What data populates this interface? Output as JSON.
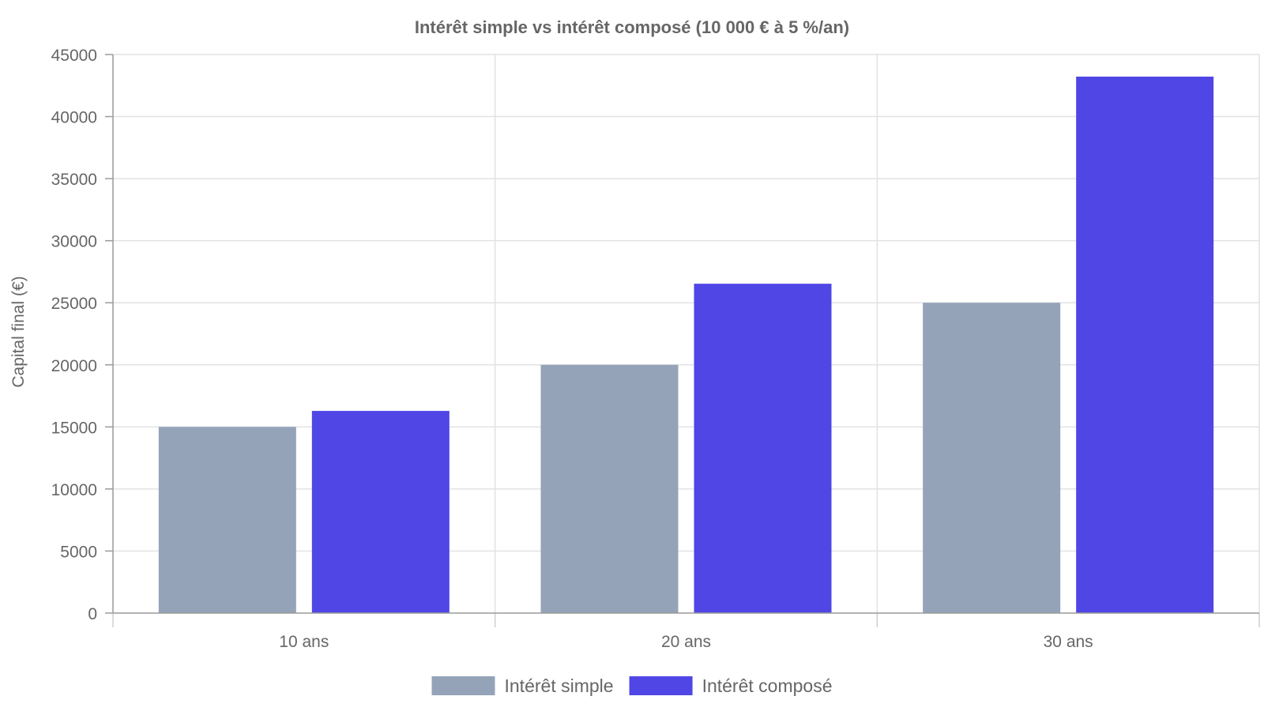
{
  "chart_data": {
    "type": "bar",
    "title": "Intérêt simple vs intérêt composé (10 000 € à 5 %/an)",
    "xlabel": "",
    "ylabel": "Capital final (€)",
    "categories": [
      "10 ans",
      "20 ans",
      "30 ans"
    ],
    "ylim": [
      0,
      45000
    ],
    "yticks": [
      0,
      5000,
      10000,
      15000,
      20000,
      25000,
      30000,
      35000,
      40000,
      45000
    ],
    "grid": true,
    "legend_position": "bottom",
    "series": [
      {
        "name": "Intérêt simple",
        "color": "#94a3b8",
        "values": [
          15000,
          20000,
          25000
        ]
      },
      {
        "name": "Intérêt composé",
        "color": "#4f46e5",
        "values": [
          16289,
          26533,
          43219
        ]
      }
    ]
  }
}
